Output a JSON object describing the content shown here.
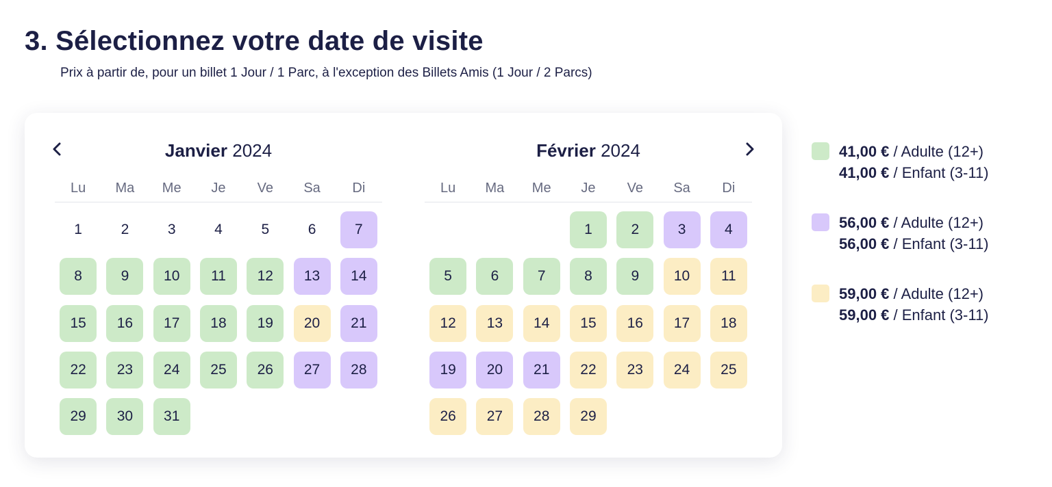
{
  "header": {
    "title": "3. Sélectionnez votre date de visite",
    "subtitle": "Prix à partir de, pour un billet 1 Jour / 1 Parc, à l'exception des Billets Amis (1 Jour / 2 Parcs)"
  },
  "colors": {
    "green": "#cdeac8",
    "purple": "#d8c8fb",
    "yellow": "#fcedc4",
    "text": "#1c1f45"
  },
  "nav": {
    "prev_icon": "chevron-left-icon",
    "next_icon": "chevron-right-icon"
  },
  "weekdays": [
    "Lu",
    "Ma",
    "Me",
    "Je",
    "Ve",
    "Sa",
    "Di"
  ],
  "months": [
    {
      "name": "Janvier",
      "year": "2024",
      "start_offset": 0,
      "days": [
        {
          "d": "1",
          "c": ""
        },
        {
          "d": "2",
          "c": ""
        },
        {
          "d": "3",
          "c": ""
        },
        {
          "d": "4",
          "c": ""
        },
        {
          "d": "5",
          "c": ""
        },
        {
          "d": "6",
          "c": ""
        },
        {
          "d": "7",
          "c": "p"
        },
        {
          "d": "8",
          "c": "g"
        },
        {
          "d": "9",
          "c": "g"
        },
        {
          "d": "10",
          "c": "g"
        },
        {
          "d": "11",
          "c": "g"
        },
        {
          "d": "12",
          "c": "g"
        },
        {
          "d": "13",
          "c": "p"
        },
        {
          "d": "14",
          "c": "p"
        },
        {
          "d": "15",
          "c": "g"
        },
        {
          "d": "16",
          "c": "g"
        },
        {
          "d": "17",
          "c": "g"
        },
        {
          "d": "18",
          "c": "g"
        },
        {
          "d": "19",
          "c": "g"
        },
        {
          "d": "20",
          "c": "y"
        },
        {
          "d": "21",
          "c": "p"
        },
        {
          "d": "22",
          "c": "g"
        },
        {
          "d": "23",
          "c": "g"
        },
        {
          "d": "24",
          "c": "g"
        },
        {
          "d": "25",
          "c": "g"
        },
        {
          "d": "26",
          "c": "g"
        },
        {
          "d": "27",
          "c": "p"
        },
        {
          "d": "28",
          "c": "p"
        },
        {
          "d": "29",
          "c": "g"
        },
        {
          "d": "30",
          "c": "g"
        },
        {
          "d": "31",
          "c": "g"
        }
      ]
    },
    {
      "name": "Février",
      "year": "2024",
      "start_offset": 3,
      "days": [
        {
          "d": "1",
          "c": "g"
        },
        {
          "d": "2",
          "c": "g"
        },
        {
          "d": "3",
          "c": "p"
        },
        {
          "d": "4",
          "c": "p"
        },
        {
          "d": "5",
          "c": "g"
        },
        {
          "d": "6",
          "c": "g"
        },
        {
          "d": "7",
          "c": "g"
        },
        {
          "d": "8",
          "c": "g"
        },
        {
          "d": "9",
          "c": "g"
        },
        {
          "d": "10",
          "c": "y"
        },
        {
          "d": "11",
          "c": "y"
        },
        {
          "d": "12",
          "c": "y"
        },
        {
          "d": "13",
          "c": "y"
        },
        {
          "d": "14",
          "c": "y"
        },
        {
          "d": "15",
          "c": "y"
        },
        {
          "d": "16",
          "c": "y"
        },
        {
          "d": "17",
          "c": "y"
        },
        {
          "d": "18",
          "c": "y"
        },
        {
          "d": "19",
          "c": "p"
        },
        {
          "d": "20",
          "c": "p"
        },
        {
          "d": "21",
          "c": "p"
        },
        {
          "d": "22",
          "c": "y"
        },
        {
          "d": "23",
          "c": "y"
        },
        {
          "d": "24",
          "c": "y"
        },
        {
          "d": "25",
          "c": "y"
        },
        {
          "d": "26",
          "c": "y"
        },
        {
          "d": "27",
          "c": "y"
        },
        {
          "d": "28",
          "c": "y"
        },
        {
          "d": "29",
          "c": "y"
        }
      ]
    }
  ],
  "legend": [
    {
      "color": "#cdeac8",
      "adult_price": "41,00 €",
      "adult_label": " / Adulte (12+)",
      "child_price": "41,00 €",
      "child_label": " / Enfant (3-11)"
    },
    {
      "color": "#d8c8fb",
      "adult_price": "56,00 €",
      "adult_label": " / Adulte (12+)",
      "child_price": "56,00 €",
      "child_label": " / Enfant (3-11)"
    },
    {
      "color": "#fcedc4",
      "adult_price": "59,00 €",
      "adult_label": " / Adulte (12+)",
      "child_price": "59,00 €",
      "child_label": " / Enfant (3-11)"
    }
  ]
}
